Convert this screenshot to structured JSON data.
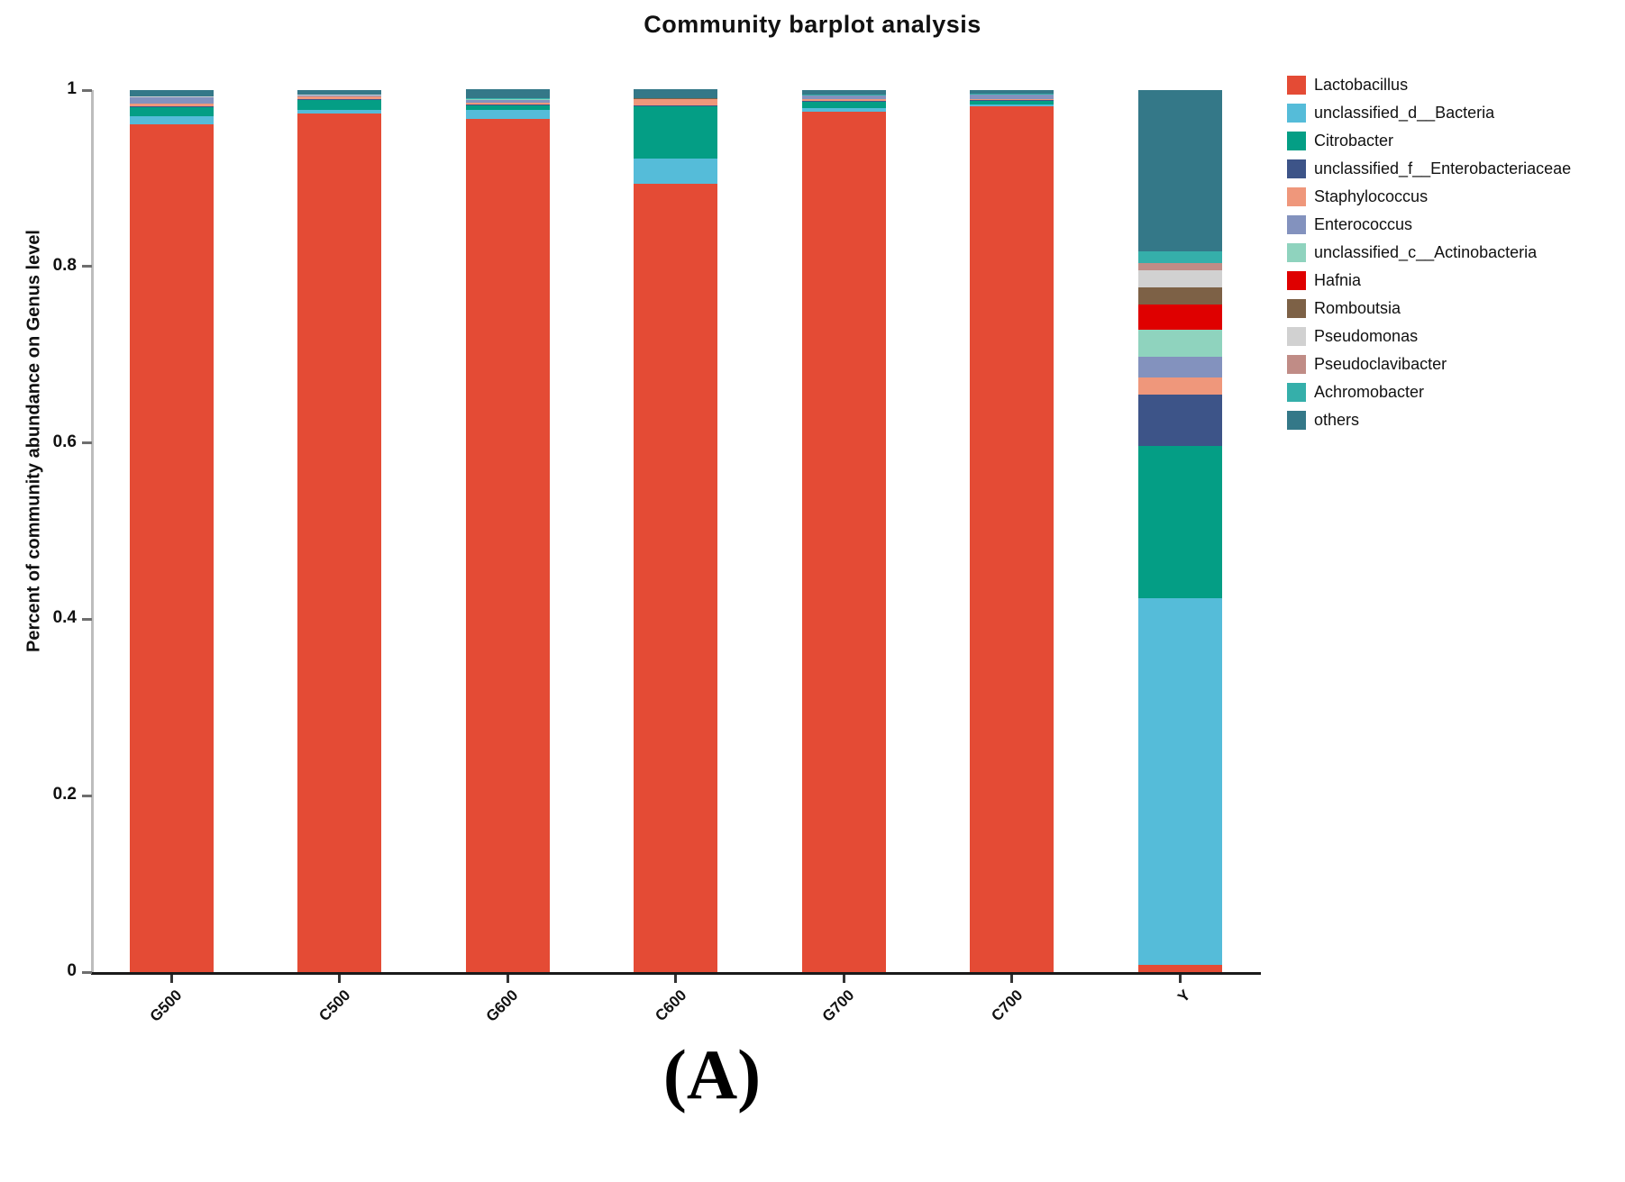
{
  "title": "Community barplot analysis",
  "caption": "(A)",
  "chart_data": {
    "type": "bar",
    "stacked": true,
    "title": "Community barplot analysis",
    "xlabel": "",
    "ylabel": "Percent of community abundance on Genus level",
    "ylim": [
      0,
      1
    ],
    "yticks": [
      1,
      0.8,
      0.6,
      0.4,
      0.2,
      0
    ],
    "ytick_labels": [
      "1",
      "0.8",
      "0.6",
      "0.4",
      "0.2",
      "0"
    ],
    "grid": false,
    "legend_position": "right",
    "categories": [
      "G500",
      "C500",
      "G600",
      "C600",
      "G700",
      "C700",
      "Y"
    ],
    "series": [
      {
        "name": "Lactobacillus",
        "color": "#E44B35",
        "values": [
          0.9615,
          0.9735,
          0.9678,
          0.8935,
          0.9757,
          0.9812,
          0.0085
        ]
      },
      {
        "name": "unclassified_d__Bacteria",
        "color": "#55BCD9",
        "values": [
          0.0085,
          0.0045,
          0.0102,
          0.029,
          0.004,
          0.0028,
          0.4155
        ]
      },
      {
        "name": "Citrobacter",
        "color": "#049E85",
        "values": [
          0.0105,
          0.0112,
          0.005,
          0.059,
          0.007,
          0.004,
          0.173
        ]
      },
      {
        "name": "unclassified_f__Enterobacteriaceae",
        "color": "#3D5488",
        "values": [
          0.001,
          0.0008,
          0.0008,
          0.001,
          0.0008,
          0.0008,
          0.0575
        ]
      },
      {
        "name": "Staphylococcus",
        "color": "#EF977B",
        "values": [
          0.0035,
          0.003,
          0.0015,
          0.007,
          0.002,
          0.0015,
          0.02
        ]
      },
      {
        "name": "Enterococcus",
        "color": "#8392BE",
        "values": [
          0.007,
          0.001,
          0.004,
          0.0005,
          0.004,
          0.0044,
          0.023
        ]
      },
      {
        "name": "unclassified_c__Actinobacteria",
        "color": "#8FD3BE",
        "values": [
          0.0002,
          0.0002,
          0.0002,
          0.0002,
          0.0002,
          0.0002,
          0.031
        ]
      },
      {
        "name": "Hafnia",
        "color": "#DF0000",
        "values": [
          0.0001,
          0.0001,
          0.0001,
          0.0001,
          0.0001,
          0.0001,
          0.028
        ]
      },
      {
        "name": "Romboutsia",
        "color": "#7D6146",
        "values": [
          0.0001,
          0.0001,
          0.0001,
          0.0001,
          0.0001,
          0.0001,
          0.02
        ]
      },
      {
        "name": "Pseudomonas",
        "color": "#D1D1D1",
        "values": [
          0.0001,
          0.0001,
          0.0001,
          0.0001,
          0.0001,
          0.0001,
          0.019
        ]
      },
      {
        "name": "Pseudoclavibacter",
        "color": "#C08C86",
        "values": [
          0.0001,
          0.0001,
          0.0001,
          0.0001,
          0.0001,
          0.0001,
          0.008
        ]
      },
      {
        "name": "Achromobacter",
        "color": "#35AFAA",
        "values": [
          0.0005,
          0.0005,
          0.0005,
          0.0005,
          0.0005,
          0.0005,
          0.014
        ]
      },
      {
        "name": "others",
        "color": "#347888",
        "values": [
          0.0075,
          0.0055,
          0.0102,
          0.0095,
          0.006,
          0.0048,
          0.1825
        ]
      }
    ]
  },
  "colors": {
    "background": "#ffffff",
    "axis_line": "#1a1a1a",
    "yaxis_line": "#bdbdbd",
    "text": "#111111"
  }
}
